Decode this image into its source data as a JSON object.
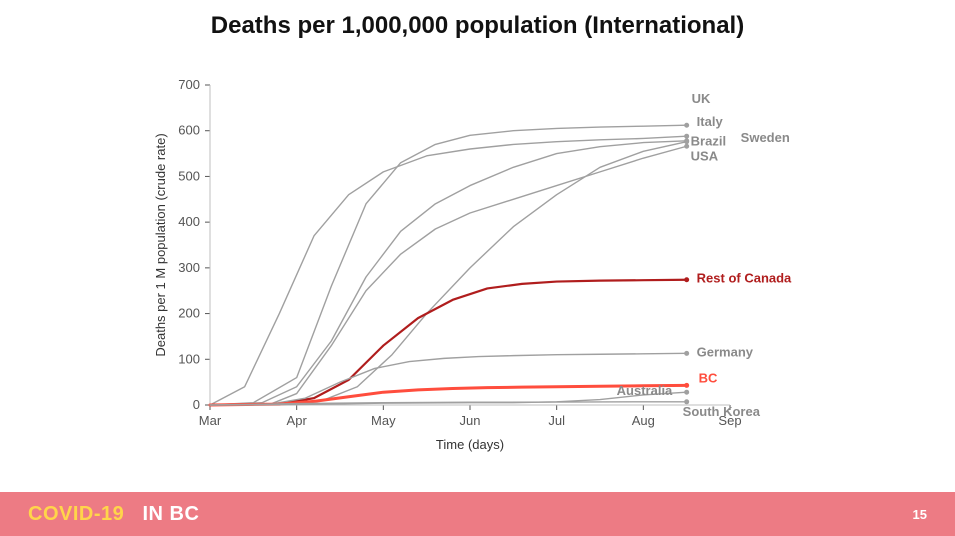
{
  "title": {
    "text": "Deaths per 1,000,000 population (International)",
    "fontsize": 24,
    "color": "#111111"
  },
  "footer": {
    "bg": "#ed7b84",
    "brand_a": "COVID-19",
    "brand_a_color": "#ffd54a",
    "brand_b": "IN BC",
    "brand_b_color": "#ffffff",
    "brand_fontsize": 20,
    "page": "15",
    "page_color": "#ffffff",
    "page_fontsize": 13
  },
  "chart": {
    "type": "line",
    "bg": "#ffffff",
    "grid_color": "#bfbfbf",
    "axis_color": "#555555",
    "x": {
      "title": "Time (days)",
      "domain": [
        0,
        6
      ],
      "ticks": [
        {
          "v": 0,
          "label": "Mar"
        },
        {
          "v": 1,
          "label": "Apr"
        },
        {
          "v": 2,
          "label": "May"
        },
        {
          "v": 3,
          "label": "Jun"
        },
        {
          "v": 4,
          "label": "Jul"
        },
        {
          "v": 5,
          "label": "Aug"
        },
        {
          "v": 6,
          "label": "Sep"
        }
      ]
    },
    "y": {
      "title": "Deaths per 1 M population (crude rate)",
      "domain": [
        0,
        700
      ],
      "ticks": [
        0,
        100,
        200,
        300,
        400,
        500,
        600,
        700
      ]
    },
    "font": {
      "axis_fontsize": 13,
      "label_fontsize": 13
    },
    "line_defaults": {
      "color": "#a0a0a0",
      "width": 1.4,
      "label_color": "#8a8a8a"
    },
    "series": [
      {
        "name": "UK",
        "label": "UK",
        "points": [
          [
            0,
            0
          ],
          [
            0.5,
            5
          ],
          [
            1,
            60
          ],
          [
            1.4,
            260
          ],
          [
            1.8,
            440
          ],
          [
            2.2,
            530
          ],
          [
            2.6,
            570
          ],
          [
            3,
            590
          ],
          [
            3.5,
            600
          ],
          [
            4,
            605
          ],
          [
            4.5,
            608
          ],
          [
            5,
            610
          ],
          [
            5.5,
            612
          ]
        ],
        "label_offset": [
          5,
          -22
        ]
      },
      {
        "name": "Italy",
        "label": "Italy",
        "points": [
          [
            0,
            0
          ],
          [
            0.4,
            40
          ],
          [
            0.8,
            200
          ],
          [
            1.2,
            370
          ],
          [
            1.6,
            460
          ],
          [
            2,
            510
          ],
          [
            2.5,
            545
          ],
          [
            3,
            560
          ],
          [
            3.5,
            570
          ],
          [
            4,
            576
          ],
          [
            4.5,
            580
          ],
          [
            5,
            583
          ],
          [
            5.5,
            588
          ]
        ],
        "label_offset": [
          10,
          -10
        ]
      },
      {
        "name": "Sweden",
        "label": "Sweden",
        "points": [
          [
            0,
            0
          ],
          [
            0.6,
            5
          ],
          [
            1,
            40
          ],
          [
            1.4,
            140
          ],
          [
            1.8,
            280
          ],
          [
            2.2,
            380
          ],
          [
            2.6,
            440
          ],
          [
            3,
            480
          ],
          [
            3.5,
            520
          ],
          [
            4,
            550
          ],
          [
            4.5,
            565
          ],
          [
            5,
            574
          ],
          [
            5.5,
            578
          ]
        ],
        "label_offset": [
          54,
          1
        ]
      },
      {
        "name": "Brazil",
        "label": "Brazil",
        "points": [
          [
            0,
            0
          ],
          [
            0.8,
            2
          ],
          [
            1.3,
            10
          ],
          [
            1.7,
            40
          ],
          [
            2.1,
            110
          ],
          [
            2.5,
            200
          ],
          [
            3,
            300
          ],
          [
            3.5,
            390
          ],
          [
            4,
            460
          ],
          [
            4.5,
            520
          ],
          [
            5,
            555
          ],
          [
            5.5,
            576
          ]
        ],
        "label_offset": [
          4,
          4
        ]
      },
      {
        "name": "USA",
        "label": "USA",
        "points": [
          [
            0,
            0
          ],
          [
            0.7,
            2
          ],
          [
            1,
            25
          ],
          [
            1.4,
            130
          ],
          [
            1.8,
            250
          ],
          [
            2.2,
            330
          ],
          [
            2.6,
            385
          ],
          [
            3,
            420
          ],
          [
            3.5,
            450
          ],
          [
            4,
            480
          ],
          [
            4.5,
            510
          ],
          [
            5,
            540
          ],
          [
            5.5,
            566
          ]
        ],
        "label_offset": [
          4,
          14
        ]
      },
      {
        "name": "RestOfCanada",
        "label": "Rest of Canada",
        "color": "#b01d1d",
        "label_color": "#b01d1d",
        "width": 2.2,
        "points": [
          [
            0,
            0
          ],
          [
            0.8,
            2
          ],
          [
            1.2,
            15
          ],
          [
            1.6,
            55
          ],
          [
            2,
            130
          ],
          [
            2.4,
            190
          ],
          [
            2.8,
            230
          ],
          [
            3.2,
            255
          ],
          [
            3.6,
            265
          ],
          [
            4,
            270
          ],
          [
            4.5,
            272
          ],
          [
            5,
            273
          ],
          [
            5.5,
            274
          ]
        ],
        "label_offset": [
          10,
          3
        ]
      },
      {
        "name": "Germany",
        "label": "Germany",
        "points": [
          [
            0,
            0
          ],
          [
            0.7,
            2
          ],
          [
            1.1,
            15
          ],
          [
            1.5,
            50
          ],
          [
            1.9,
            80
          ],
          [
            2.3,
            95
          ],
          [
            2.7,
            102
          ],
          [
            3.1,
            106
          ],
          [
            3.5,
            108
          ],
          [
            4,
            110
          ],
          [
            4.5,
            111
          ],
          [
            5,
            112
          ],
          [
            5.5,
            113
          ]
        ],
        "label_offset": [
          10,
          3
        ]
      },
      {
        "name": "BC",
        "label": "BC",
        "color": "#ff4d3d",
        "label_color": "#ff4d3d",
        "width": 3,
        "points": [
          [
            0,
            0
          ],
          [
            0.8,
            2
          ],
          [
            1.2,
            8
          ],
          [
            1.6,
            18
          ],
          [
            2,
            28
          ],
          [
            2.4,
            33
          ],
          [
            2.8,
            36
          ],
          [
            3.2,
            38
          ],
          [
            3.6,
            39
          ],
          [
            4,
            40
          ],
          [
            4.5,
            41
          ],
          [
            5,
            42
          ],
          [
            5.5,
            43
          ]
        ],
        "label_offset": [
          12,
          -3
        ],
        "label_fontsize": 14
      },
      {
        "name": "Australia",
        "label": "Australia",
        "points": [
          [
            0,
            0
          ],
          [
            1,
            1
          ],
          [
            2,
            4
          ],
          [
            3,
            5
          ],
          [
            3.5,
            5
          ],
          [
            4,
            7
          ],
          [
            4.5,
            12
          ],
          [
            5,
            22
          ],
          [
            5.5,
            28
          ]
        ],
        "label_offset": [
          -70,
          3
        ]
      },
      {
        "name": "SouthKorea",
        "label": "South Korea",
        "points": [
          [
            0,
            0
          ],
          [
            1,
            3
          ],
          [
            2,
            5
          ],
          [
            3,
            6
          ],
          [
            4,
            6.5
          ],
          [
            5,
            7
          ],
          [
            5.5,
            7
          ]
        ],
        "label_offset": [
          -4,
          14
        ]
      }
    ]
  }
}
